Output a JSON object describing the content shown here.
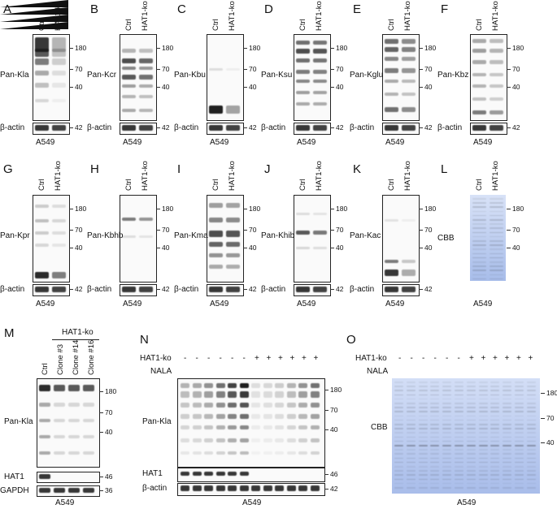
{
  "panels_row1": [
    {
      "letter": "A",
      "lanes": [
        "Ctrl",
        "HAT1-ko"
      ],
      "antibody": "Pan-Kla",
      "cell_line": "A549"
    },
    {
      "letter": "B",
      "lanes": [
        "Ctrl",
        "HAT1-ko"
      ],
      "antibody": "Pan-Kcr",
      "cell_line": "A549"
    },
    {
      "letter": "C",
      "lanes": [
        "Ctrl",
        "HAT1-ko"
      ],
      "antibody": "Pan-Kbu",
      "cell_line": "A549"
    },
    {
      "letter": "D",
      "lanes": [
        "Ctrl",
        "HAT1-ko"
      ],
      "antibody": "Pan-Ksu",
      "cell_line": "A549"
    },
    {
      "letter": "E",
      "lanes": [
        "Ctrl",
        "HAT1-ko"
      ],
      "antibody": "Pan-Kglu",
      "cell_line": "A549"
    },
    {
      "letter": "F",
      "lanes": [
        "Ctrl",
        "HAT1-ko"
      ],
      "antibody": "Pan-Kbz",
      "cell_line": "A549"
    }
  ],
  "panels_row2": [
    {
      "letter": "G",
      "lanes": [
        "Ctrl",
        "HAT1-ko"
      ],
      "antibody": "Pan-Kpr",
      "cell_line": "A549"
    },
    {
      "letter": "H",
      "lanes": [
        "Ctrl",
        "HAT1-ko"
      ],
      "antibody": "Pan-Kbhb",
      "cell_line": "A549"
    },
    {
      "letter": "I",
      "lanes": [
        "Ctrl",
        "HAT1-ko"
      ],
      "antibody": "Pan-Kma",
      "cell_line": "A549"
    },
    {
      "letter": "J",
      "lanes": [
        "Ctrl",
        "HAT1-ko"
      ],
      "antibody": "Pan-Khib",
      "cell_line": "A549"
    },
    {
      "letter": "K",
      "lanes": [
        "Ctrl",
        "HAT1-ko"
      ],
      "antibody": "Pan-Kac",
      "cell_line": "A549"
    },
    {
      "letter": "L",
      "lanes": [
        "Ctrl",
        "HAT1-ko"
      ],
      "antibody": "CBB",
      "cell_line": "A549"
    }
  ],
  "loading_label": "β-actin",
  "markers": {
    "m180": "180",
    "m70": "70",
    "m40": "40",
    "m42": "42",
    "m46": "46",
    "m36": "36"
  },
  "panel_M": {
    "letter": "M",
    "group": "HAT1-ko",
    "lanes": [
      "Ctrl",
      "Clone #3",
      "Clone #14",
      "Clone #16"
    ],
    "antibody": "Pan-Kla",
    "hat1": "HAT1",
    "gapdh": "GAPDH",
    "cell_line": "A549"
  },
  "panel_N": {
    "letter": "N",
    "row_hat1ko": "HAT1-ko",
    "row_nala": "NALA",
    "minus": "-",
    "plus": "+",
    "antibody": "Pan-Kla",
    "hat1": "HAT1",
    "actin": "β-actin",
    "cell_line": "A549"
  },
  "panel_O": {
    "letter": "O",
    "row_hat1ko": "HAT1-ko",
    "row_nala": "NALA",
    "minus": "-",
    "plus": "+",
    "antibody": "CBB",
    "cell_line": "A549"
  }
}
